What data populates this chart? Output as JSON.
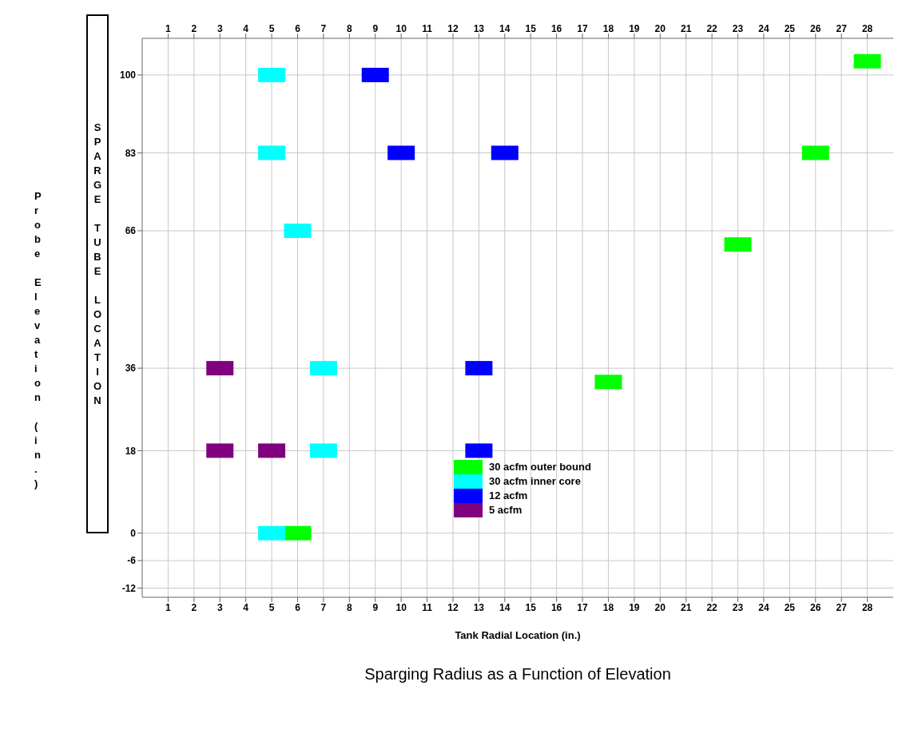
{
  "chart_data": {
    "type": "scatter",
    "title": "Sparging Radius as a Function of Elevation",
    "xlabel": "Tank Radial Location (in.)",
    "ylabel": "Probe Elevation (in.)",
    "annotations": [
      "SPARGE TUBE LOCATION"
    ],
    "xlim": [
      0,
      29
    ],
    "xticks": [
      1,
      2,
      3,
      4,
      5,
      6,
      7,
      8,
      9,
      10,
      11,
      12,
      13,
      14,
      15,
      16,
      17,
      18,
      19,
      20,
      21,
      22,
      23,
      24,
      25,
      26,
      27,
      28
    ],
    "x2lim": [
      0,
      29
    ],
    "x2ticks": [
      1,
      2,
      3,
      4,
      5,
      6,
      7,
      8,
      9,
      10,
      11,
      12,
      13,
      14,
      15,
      16,
      17,
      18,
      19,
      20,
      21,
      22,
      23,
      24,
      25,
      26,
      27,
      28
    ],
    "ylim": [
      -14,
      108
    ],
    "yticks": [
      -12,
      -6,
      0,
      18,
      36,
      66,
      83,
      100
    ],
    "grid": true,
    "legend": "bottom",
    "marker": "square",
    "series": [
      {
        "name": "30 acfm outer bound",
        "color": "#00ff00",
        "x": [
          28,
          26,
          23,
          18,
          6
        ],
        "values": [
          103,
          83,
          63,
          33,
          0
        ]
      },
      {
        "name": "30 acfm inner core",
        "color": "#00ffff",
        "x": [
          5,
          5,
          6,
          7,
          7,
          5
        ],
        "values": [
          100,
          83,
          66,
          36,
          18,
          0
        ]
      },
      {
        "name": "12 acfm",
        "color": "#0000ff",
        "x": [
          9,
          10,
          14,
          13,
          13
        ],
        "values": [
          100,
          83,
          83,
          36,
          18
        ]
      },
      {
        "name": "5 acfm",
        "color": "#800080",
        "x": [
          3,
          3,
          5
        ],
        "values": [
          36,
          18,
          18
        ]
      }
    ]
  }
}
